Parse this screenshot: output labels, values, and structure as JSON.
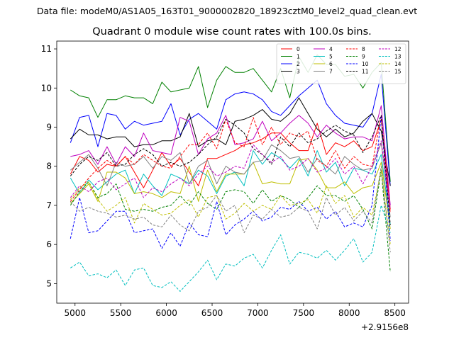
{
  "header": {
    "data_file": "Data file: modeM0/AS1A05_163T01_9000002820_18923cztM0_level2_quad_clean.evt"
  },
  "chart_data": {
    "type": "line",
    "title": "Quadrant 0 module wise count rates with 100.0s bins.",
    "xlabel": "",
    "ylabel": "",
    "x_offset_label": "+2.9156e8",
    "xlim": [
      4800,
      8650
    ],
    "ylim": [
      4.5,
      11.2
    ],
    "x_ticks": [
      5000,
      5500,
      6000,
      6500,
      7000,
      7500,
      8000,
      8500
    ],
    "y_ticks": [
      5,
      6,
      7,
      8,
      9,
      10,
      11
    ],
    "x": [
      4950,
      5050,
      5150,
      5250,
      5350,
      5450,
      5550,
      5650,
      5750,
      5850,
      5950,
      6050,
      6150,
      6250,
      6350,
      6450,
      6550,
      6650,
      6750,
      6850,
      6950,
      7050,
      7150,
      7250,
      7350,
      7450,
      7550,
      7650,
      7750,
      7850,
      7950,
      8050,
      8150,
      8250,
      8350,
      8450
    ],
    "legend": {
      "location": "top-right",
      "columns": 4
    },
    "series": [
      {
        "name": "0",
        "color": "#ff0000",
        "dash": false,
        "values": [
          7.8,
          8.25,
          8.15,
          7.85,
          8.05,
          8.0,
          8.25,
          7.85,
          7.45,
          7.9,
          8.35,
          8.0,
          8.2,
          7.85,
          7.5,
          8.2,
          8.2,
          8.3,
          8.4,
          8.55,
          8.6,
          8.7,
          8.85,
          8.85,
          8.6,
          8.4,
          8.4,
          9.1,
          8.3,
          8.6,
          8.5,
          8.65,
          8.4,
          8.5,
          9.2,
          6.9
        ]
      },
      {
        "name": "1",
        "color": "#008000",
        "dash": false,
        "values": [
          9.95,
          9.8,
          9.75,
          9.25,
          9.7,
          9.7,
          9.8,
          9.75,
          9.75,
          9.6,
          10.15,
          9.9,
          9.95,
          10.0,
          10.55,
          9.5,
          10.2,
          10.55,
          10.4,
          10.4,
          10.5,
          10.2,
          9.9,
          10.5,
          9.75,
          10.8,
          10.4,
          10.85,
          10.6,
          10.6,
          10.3,
          10.35,
          10.0,
          10.4,
          10.65,
          7.6
        ]
      },
      {
        "name": "2",
        "color": "#0000ff",
        "dash": false,
        "values": [
          8.6,
          9.25,
          9.3,
          8.5,
          9.35,
          9.3,
          8.95,
          9.15,
          9.05,
          9.1,
          9.15,
          9.6,
          8.8,
          9.2,
          9.35,
          9.15,
          8.95,
          9.7,
          9.85,
          9.9,
          9.85,
          9.7,
          9.4,
          9.3,
          9.55,
          9.8,
          10.0,
          10.2,
          9.6,
          9.3,
          9.1,
          9.05,
          9.0,
          9.35,
          10.35,
          7.5
        ]
      },
      {
        "name": "3",
        "color": "#000000",
        "dash": false,
        "values": [
          8.7,
          8.95,
          8.8,
          8.8,
          8.7,
          8.75,
          8.75,
          8.5,
          8.55,
          8.55,
          8.65,
          8.65,
          8.75,
          9.35,
          8.5,
          8.65,
          8.7,
          8.55,
          9.15,
          9.2,
          9.3,
          9.45,
          9.2,
          9.15,
          9.35,
          9.75,
          9.35,
          8.95,
          8.75,
          8.95,
          8.75,
          8.85,
          9.15,
          9.35,
          8.9,
          7.5
        ]
      },
      {
        "name": "4",
        "color": "#bf00bf",
        "dash": false,
        "values": [
          8.25,
          8.3,
          8.4,
          8.05,
          8.5,
          8.05,
          8.5,
          8.25,
          8.85,
          8.4,
          8.35,
          8.3,
          9.25,
          9.15,
          8.3,
          8.7,
          8.85,
          9.3,
          8.55,
          8.6,
          8.7,
          9.15,
          8.65,
          8.85,
          9.1,
          9.3,
          9.1,
          8.75,
          9.05,
          8.85,
          8.7,
          8.75,
          8.75,
          8.65,
          9.55,
          7.0
        ]
      },
      {
        "name": "5",
        "color": "#00bfbf",
        "dash": false,
        "values": [
          7.7,
          7.3,
          7.65,
          7.4,
          7.6,
          7.8,
          7.9,
          7.3,
          7.8,
          7.5,
          7.25,
          7.8,
          7.7,
          7.55,
          7.9,
          7.75,
          7.3,
          7.75,
          7.85,
          7.5,
          8.4,
          8.05,
          8.35,
          8.2,
          7.95,
          8.2,
          7.75,
          8.4,
          7.85,
          8.1,
          7.5,
          7.95,
          7.9,
          7.8,
          8.3,
          6.5
        ]
      },
      {
        "name": "6",
        "color": "#bfbf00",
        "dash": false,
        "values": [
          7.05,
          7.3,
          7.55,
          7.1,
          7.85,
          7.85,
          7.7,
          7.3,
          7.35,
          7.3,
          7.2,
          7.35,
          7.3,
          8.0,
          7.1,
          7.9,
          7.35,
          7.8,
          7.8,
          7.8,
          8.1,
          7.55,
          7.6,
          7.55,
          7.55,
          8.15,
          8.2,
          7.9,
          7.45,
          7.45,
          7.6,
          7.3,
          7.45,
          7.5,
          8.1,
          6.4
        ]
      },
      {
        "name": "7",
        "color": "#808080",
        "dash": false,
        "values": [
          7.9,
          8.1,
          8.3,
          7.95,
          7.5,
          8.1,
          8.0,
          8.05,
          8.25,
          7.95,
          8.25,
          8.15,
          8.35,
          7.55,
          8.0,
          8.15,
          7.55,
          8.0,
          7.85,
          7.8,
          8.1,
          8.15,
          8.55,
          8.4,
          8.2,
          8.25,
          7.85,
          8.2,
          8.0,
          7.8,
          8.25,
          8.05,
          7.9,
          7.95,
          8.6,
          6.7
        ]
      },
      {
        "name": "8",
        "color": "#ff0000",
        "dash": true,
        "values": [
          7.1,
          7.4,
          7.7,
          7.95,
          8.15,
          8.0,
          8.25,
          8.05,
          8.3,
          8.15,
          8.0,
          7.95,
          8.25,
          8.55,
          8.55,
          8.85,
          8.45,
          9.2,
          8.6,
          8.5,
          9.25,
          8.55,
          9.0,
          8.55,
          8.85,
          8.75,
          8.9,
          8.15,
          8.0,
          8.4,
          7.95,
          8.25,
          8.05,
          8.0,
          9.3,
          6.8
        ]
      },
      {
        "name": "9",
        "color": "#008000",
        "dash": true,
        "values": [
          7.0,
          7.35,
          7.6,
          7.2,
          7.3,
          7.55,
          6.9,
          6.85,
          6.9,
          6.85,
          6.95,
          7.0,
          7.25,
          7.0,
          7.35,
          7.05,
          6.9,
          7.35,
          7.4,
          7.35,
          7.05,
          7.4,
          7.1,
          7.25,
          7.15,
          6.95,
          7.2,
          7.5,
          7.25,
          7.25,
          7.1,
          7.25,
          6.9,
          6.4,
          7.9,
          5.3
        ]
      },
      {
        "name": "10",
        "color": "#0000ff",
        "dash": true,
        "values": [
          6.15,
          7.2,
          6.3,
          6.35,
          6.6,
          6.85,
          6.85,
          6.3,
          6.35,
          6.4,
          5.9,
          6.3,
          5.95,
          6.55,
          6.25,
          6.2,
          7.1,
          6.25,
          6.5,
          6.65,
          6.85,
          6.6,
          6.7,
          6.95,
          6.9,
          7.1,
          6.85,
          6.95,
          6.65,
          6.85,
          6.45,
          6.55,
          6.45,
          7.0,
          9.3,
          6.1
        ]
      },
      {
        "name": "11",
        "color": "#000000",
        "dash": true,
        "values": [
          7.75,
          8.05,
          8.25,
          8.15,
          8.35,
          8.0,
          8.05,
          8.3,
          8.45,
          8.3,
          8.0,
          8.1,
          8.0,
          8.1,
          8.3,
          8.55,
          8.75,
          9.2,
          9.05,
          8.85,
          8.45,
          8.3,
          8.05,
          8.75,
          8.5,
          8.85,
          8.6,
          8.7,
          8.9,
          9.05,
          8.9,
          8.8,
          8.35,
          8.75,
          9.3,
          6.5
        ]
      },
      {
        "name": "12",
        "color": "#bf00bf",
        "dash": true,
        "values": [
          7.2,
          7.5,
          7.35,
          7.6,
          7.7,
          7.4,
          7.55,
          7.7,
          7.2,
          7.45,
          7.35,
          7.55,
          7.7,
          7.5,
          7.8,
          8.0,
          7.75,
          7.85,
          8.0,
          7.95,
          8.55,
          8.3,
          8.1,
          8.25,
          7.9,
          8.0,
          8.2,
          7.85,
          7.95,
          8.2,
          7.8,
          8.0,
          7.55,
          8.0,
          8.65,
          6.9
        ]
      },
      {
        "name": "13",
        "color": "#00bfbf",
        "dash": true,
        "values": [
          5.4,
          5.55,
          5.2,
          5.25,
          5.15,
          5.35,
          4.95,
          5.35,
          5.4,
          4.95,
          4.9,
          5.05,
          4.8,
          5.05,
          5.3,
          5.6,
          5.1,
          5.5,
          5.45,
          5.65,
          5.75,
          5.4,
          5.85,
          6.25,
          5.5,
          5.8,
          5.75,
          5.65,
          5.85,
          5.6,
          5.85,
          6.15,
          5.55,
          5.8,
          7.0,
          6.3
        ]
      },
      {
        "name": "14",
        "color": "#bfbf00",
        "dash": true,
        "values": [
          7.15,
          7.45,
          7.6,
          7.15,
          6.85,
          7.0,
          7.2,
          6.55,
          7.05,
          6.9,
          6.75,
          6.8,
          7.0,
          7.15,
          6.7,
          7.2,
          7.25,
          6.65,
          6.8,
          7.05,
          6.85,
          7.0,
          6.9,
          7.25,
          7.0,
          7.05,
          7.15,
          6.8,
          7.5,
          7.05,
          7.25,
          6.7,
          6.95,
          6.75,
          7.9,
          6.0
        ]
      },
      {
        "name": "15",
        "color": "#808080",
        "dash": true,
        "values": [
          7.1,
          6.85,
          6.95,
          6.85,
          6.8,
          6.7,
          6.75,
          6.65,
          6.7,
          6.5,
          6.45,
          6.75,
          6.5,
          6.35,
          6.85,
          6.95,
          7.25,
          6.85,
          7.0,
          6.3,
          6.75,
          6.65,
          6.9,
          6.7,
          6.75,
          6.95,
          6.85,
          6.4,
          7.2,
          6.75,
          6.95,
          6.6,
          6.85,
          6.55,
          8.0,
          5.8
        ]
      }
    ]
  }
}
